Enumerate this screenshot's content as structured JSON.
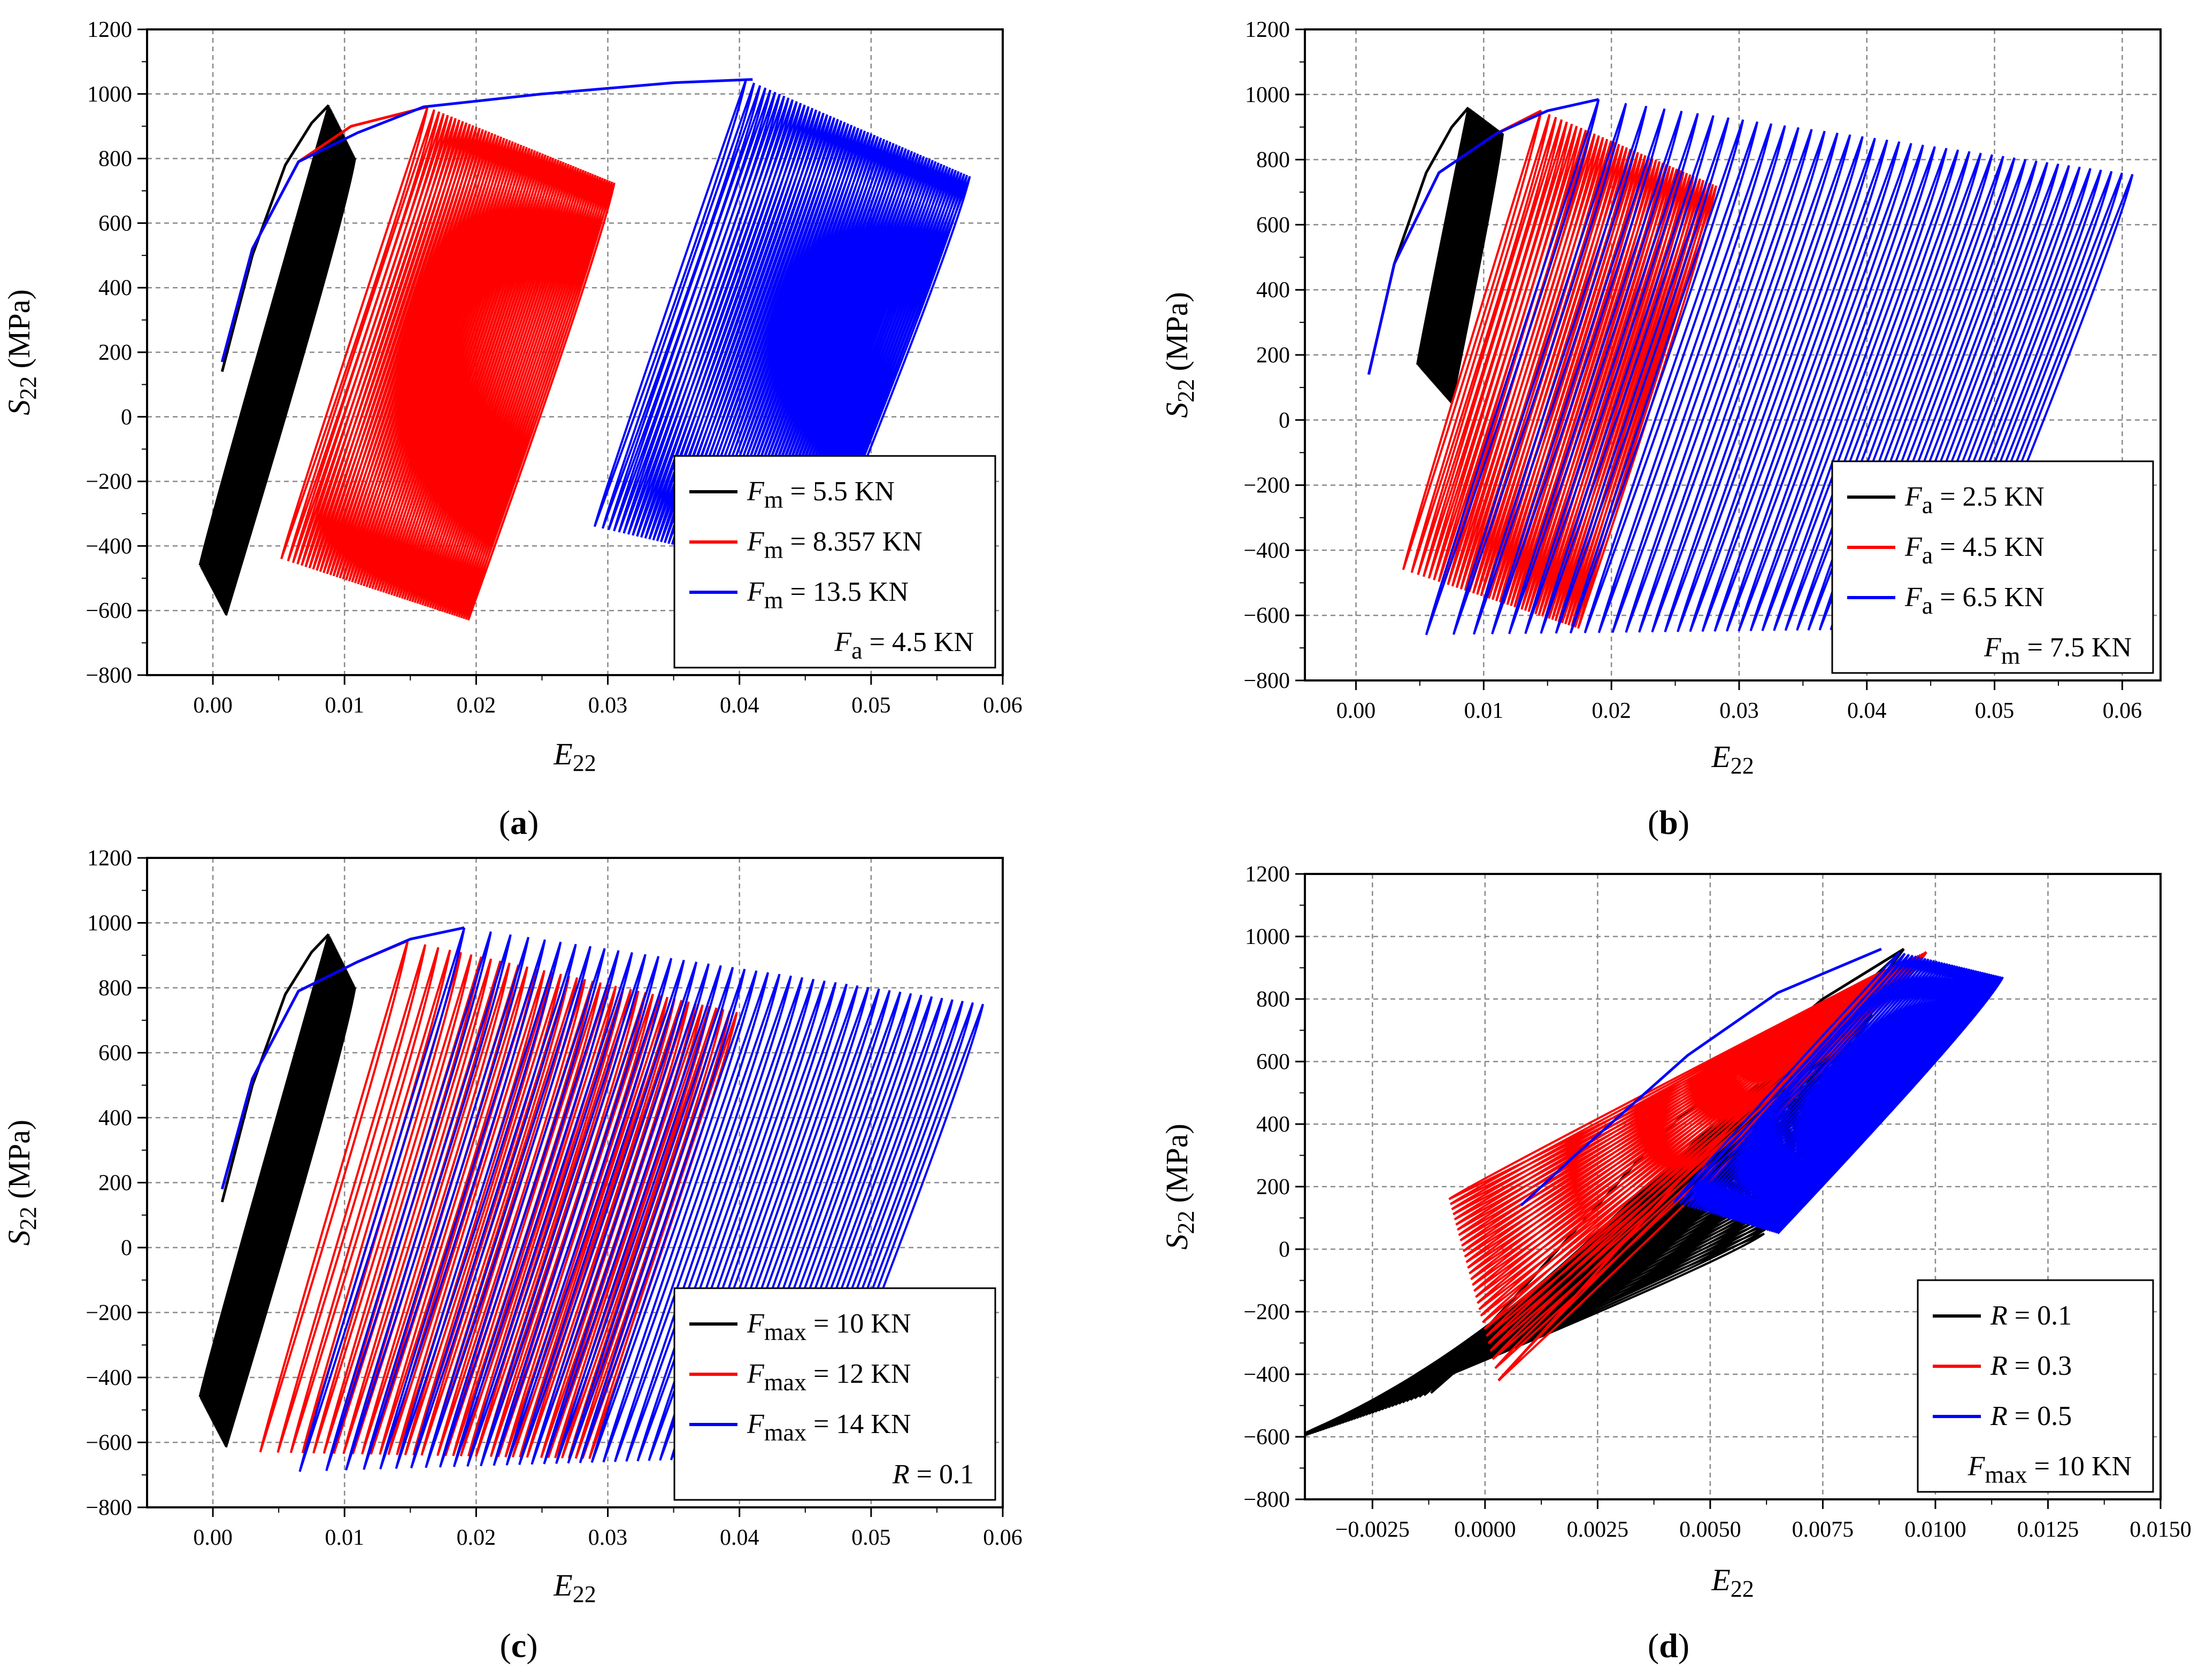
{
  "figure": {
    "panels_order": [
      "a",
      "b",
      "c",
      "d"
    ]
  },
  "chart_data": [
    {
      "panel": "a",
      "type": "line",
      "caption": "(a)",
      "caption_letter": "a",
      "xlabel": "E22",
      "xlabel_main": "E",
      "xlabel_sub": "22",
      "ylabel": "S22 (MPa)",
      "ylabel_main": "S",
      "ylabel_sub": "22",
      "ylabel_unit": " (MPa)",
      "xlim": [
        -0.005,
        0.06
      ],
      "ylim": [
        -800,
        1200
      ],
      "xticks": [
        0.0,
        0.01,
        0.02,
        0.03,
        0.04,
        0.05,
        0.06
      ],
      "xtick_labels": [
        "0.00",
        "0.01",
        "0.02",
        "0.03",
        "0.04",
        "0.05",
        "0.06"
      ],
      "yticks": [
        -800,
        -600,
        -400,
        -200,
        0,
        200,
        400,
        600,
        800,
        1000,
        1200
      ],
      "ytick_labels": [
        "−800",
        "−600",
        "−400",
        "−200",
        "0",
        "200",
        "400",
        "600",
        "800",
        "1000",
        "1200"
      ],
      "grid": true,
      "legend_position": "bottom-right",
      "legend": [
        {
          "main": "F",
          "sub": "m",
          "rest": " = 5.5 KN",
          "color": "#000000"
        },
        {
          "main": "F",
          "sub": "m",
          "rest": " = 8.357 KN",
          "color": "#ff0000"
        },
        {
          "main": "F",
          "sub": "m",
          "rest": " = 13.5 KN",
          "color": "#0000ff"
        }
      ],
      "legend_note": {
        "main": "F",
        "sub": "a",
        "rest": " = 4.5 KN"
      },
      "series": [
        {
          "name": "Fm = 5.5 KN",
          "color": "#000000",
          "envelope": [
            [
              0.0007,
              140
            ],
            [
              0.003,
              500
            ],
            [
              0.0055,
              780
            ],
            [
              0.0075,
              910
            ],
            [
              0.0088,
              965
            ]
          ],
          "cycles": 60,
          "x_start": 0.0088,
          "x_end": 0.0108,
          "peak_start": 965,
          "peak_end": 800,
          "min_start": -460,
          "min_end": -615,
          "width": 0.0098
        },
        {
          "name": "Fm = 8.357 KN",
          "color": "#ff0000",
          "envelope": [
            [
              0.0007,
              170
            ],
            [
              0.003,
              520
            ],
            [
              0.0065,
              790
            ],
            [
              0.0105,
              900
            ],
            [
              0.0163,
              960
            ]
          ],
          "cycles": 65,
          "x_start": 0.0163,
          "x_end": 0.0305,
          "peak_start": 960,
          "peak_end": 725,
          "min_start": -440,
          "min_end": -630,
          "width": 0.0111
        },
        {
          "name": "Fm = 13.5 KN",
          "color": "#0000ff",
          "envelope": [
            [
              0.0007,
              170
            ],
            [
              0.003,
              520
            ],
            [
              0.0065,
              790
            ],
            [
              0.011,
              880
            ],
            [
              0.016,
              960
            ],
            [
              0.025,
              1000
            ],
            [
              0.035,
              1035
            ],
            [
              0.041,
              1045
            ]
          ],
          "cycles": 65,
          "x_start": 0.0405,
          "x_end": 0.0575,
          "peak_start": 1045,
          "peak_end": 745,
          "min_start": -340,
          "min_end": -500,
          "width": 0.0115
        }
      ]
    },
    {
      "panel": "b",
      "type": "line",
      "caption": "(b)",
      "caption_letter": "b",
      "xlabel": "E22",
      "xlabel_main": "E",
      "xlabel_sub": "22",
      "ylabel": "S22 (MPa)",
      "ylabel_main": "S",
      "ylabel_sub": "22",
      "ylabel_unit": " (MPa)",
      "xlim": [
        -0.004,
        0.063
      ],
      "ylim": [
        -800,
        1200
      ],
      "xticks": [
        0.0,
        0.01,
        0.02,
        0.03,
        0.04,
        0.05,
        0.06
      ],
      "xtick_labels": [
        "0.00",
        "0.01",
        "0.02",
        "0.03",
        "0.04",
        "0.05",
        "0.06"
      ],
      "yticks": [
        -800,
        -600,
        -400,
        -200,
        0,
        200,
        400,
        600,
        800,
        1000,
        1200
      ],
      "ytick_labels": [
        "−800",
        "−600",
        "−400",
        "−200",
        "0",
        "200",
        "400",
        "600",
        "800",
        "1000",
        "1200"
      ],
      "grid": true,
      "legend_position": "bottom-right",
      "legend": [
        {
          "main": "F",
          "sub": "a",
          "rest": " = 2.5 KN",
          "color": "#000000"
        },
        {
          "main": "F",
          "sub": "a",
          "rest": " = 4.5 KN",
          "color": "#ff0000"
        },
        {
          "main": "F",
          "sub": "a",
          "rest": " = 6.5 KN",
          "color": "#0000ff"
        }
      ],
      "legend_note": {
        "main": "F",
        "sub": "m",
        "rest": " = 7.5 KN"
      },
      "series": [
        {
          "name": "Fa = 2.5 KN",
          "color": "#000000",
          "envelope": [
            [
              0.001,
              140
            ],
            [
              0.003,
              480
            ],
            [
              0.0055,
              760
            ],
            [
              0.0075,
              900
            ],
            [
              0.0088,
              960
            ]
          ],
          "cycles": 60,
          "x_start": 0.0088,
          "x_end": 0.0115,
          "peak_start": 960,
          "peak_end": 880,
          "min_start": 170,
          "min_end": 50,
          "width": 0.004
        },
        {
          "name": "Fa = 4.5 KN",
          "color": "#ff0000",
          "envelope": [
            [
              0.001,
              140
            ],
            [
              0.003,
              480
            ],
            [
              0.0065,
              760
            ],
            [
              0.011,
              880
            ],
            [
              0.0145,
              950
            ]
          ],
          "cycles": 45,
          "x_start": 0.0145,
          "x_end": 0.0282,
          "peak_start": 950,
          "peak_end": 720,
          "min_start": -460,
          "min_end": -640,
          "width": 0.0108
        },
        {
          "name": "Fa = 6.5 KN",
          "color": "#0000ff",
          "envelope": [
            [
              0.001,
              140
            ],
            [
              0.003,
              480
            ],
            [
              0.0065,
              760
            ],
            [
              0.011,
              880
            ],
            [
              0.015,
              950
            ],
            [
              0.019,
              985
            ]
          ],
          "cycles": 42,
          "x_start": 0.019,
          "x_end": 0.0608,
          "peak_start": 985,
          "peak_end": 755,
          "min_start": -660,
          "min_end": -640,
          "width": 0.0135
        }
      ]
    },
    {
      "panel": "c",
      "type": "line",
      "caption": "(c)",
      "caption_letter": "c",
      "xlabel": "E22",
      "xlabel_main": "E",
      "xlabel_sub": "22",
      "ylabel": "S22 (MPa)",
      "ylabel_main": "S",
      "ylabel_sub": "22",
      "ylabel_unit": " (MPa)",
      "xlim": [
        -0.005,
        0.06
      ],
      "ylim": [
        -800,
        1200
      ],
      "xticks": [
        0.0,
        0.01,
        0.02,
        0.03,
        0.04,
        0.05,
        0.06
      ],
      "xtick_labels": [
        "0.00",
        "0.01",
        "0.02",
        "0.03",
        "0.04",
        "0.05",
        "0.06"
      ],
      "yticks": [
        -800,
        -600,
        -400,
        -200,
        0,
        200,
        400,
        600,
        800,
        1000,
        1200
      ],
      "ytick_labels": [
        "−800",
        "−600",
        "−400",
        "−200",
        "0",
        "200",
        "400",
        "600",
        "800",
        "1000",
        "1200"
      ],
      "grid": true,
      "legend_position": "bottom-right",
      "legend": [
        {
          "main": "F",
          "sub": "max",
          "rest": " = 10 KN",
          "color": "#000000"
        },
        {
          "main": "F",
          "sub": "max",
          "rest": " = 12 KN",
          "color": "#ff0000"
        },
        {
          "main": "F",
          "sub": "max",
          "rest": " = 14 KN",
          "color": "#0000ff"
        }
      ],
      "legend_note": {
        "main": "R",
        "sub": "",
        "rest": " = 0.1"
      },
      "series": [
        {
          "name": "Fmax = 10 KN",
          "color": "#000000",
          "envelope": [
            [
              0.0007,
              140
            ],
            [
              0.003,
              500
            ],
            [
              0.0055,
              780
            ],
            [
              0.0075,
              910
            ],
            [
              0.0088,
              965
            ]
          ],
          "cycles": 60,
          "x_start": 0.0088,
          "x_end": 0.0108,
          "peak_start": 965,
          "peak_end": 800,
          "min_start": -460,
          "min_end": -615,
          "width": 0.0098
        },
        {
          "name": "Fmax = 12 KN",
          "color": "#ff0000",
          "envelope": [
            [
              0.0007,
              180
            ],
            [
              0.003,
              520
            ],
            [
              0.0065,
              790
            ],
            [
              0.011,
              880
            ],
            [
              0.0148,
              945
            ]
          ],
          "cycles": 40,
          "x_start": 0.0148,
          "x_end": 0.0398,
          "peak_start": 945,
          "peak_end": 725,
          "min_start": -630,
          "min_end": -650,
          "width": 0.0112
        },
        {
          "name": "Fmax = 14 KN",
          "color": "#0000ff",
          "envelope": [
            [
              0.0007,
              180
            ],
            [
              0.003,
              520
            ],
            [
              0.0065,
              790
            ],
            [
              0.011,
              880
            ],
            [
              0.015,
              950
            ],
            [
              0.0191,
              985
            ]
          ],
          "cycles": 42,
          "x_start": 0.0191,
          "x_end": 0.0585,
          "peak_start": 985,
          "peak_end": 750,
          "min_start": -690,
          "min_end": -640,
          "width": 0.0125
        }
      ]
    },
    {
      "panel": "d",
      "type": "line",
      "caption": "(d)",
      "caption_letter": "d",
      "xlabel": "E22",
      "xlabel_main": "E",
      "xlabel_sub": "22",
      "ylabel": "S22 (MPa)",
      "ylabel_main": "S",
      "ylabel_sub": "22",
      "ylabel_unit": " (MPa)",
      "xlim": [
        -0.004,
        0.015
      ],
      "ylim": [
        -800,
        1200
      ],
      "xticks": [
        -0.0025,
        0.0,
        0.0025,
        0.005,
        0.0075,
        0.01,
        0.0125,
        0.015
      ],
      "xtick_labels": [
        "−0.0025",
        "0.0000",
        "0.0025",
        "0.0050",
        "0.0075",
        "0.0100",
        "0.0125",
        "0.0150"
      ],
      "yticks": [
        -800,
        -600,
        -400,
        -200,
        0,
        200,
        400,
        600,
        800,
        1000,
        1200
      ],
      "ytick_labels": [
        "−800",
        "−600",
        "−400",
        "−200",
        "0",
        "200",
        "400",
        "600",
        "800",
        "1000",
        "1200"
      ],
      "grid": true,
      "legend_position": "bottom-right",
      "legend": [
        {
          "main": "R",
          "sub": "",
          "rest": " = 0.1",
          "color": "#000000"
        },
        {
          "main": "R",
          "sub": "",
          "rest": " = 0.3",
          "color": "#ff0000"
        },
        {
          "main": "R",
          "sub": "",
          "rest": " = 0.5",
          "color": "#0000ff"
        }
      ],
      "legend_note": {
        "main": "F",
        "sub": "max",
        "rest": " = 10 KN"
      },
      "series": [
        {
          "name": "R = 0.1",
          "color": "#000000",
          "envelope": [
            [
              -0.0013,
              -460
            ],
            [
              0.001,
              -100
            ],
            [
              0.004,
              380
            ],
            [
              0.0075,
              800
            ],
            [
              0.0093,
              960
            ]
          ],
          "cycles": 45,
          "x_start": 0.0093,
          "x_end": 0.0062,
          "peak_start": 960,
          "peak_end": 50,
          "min_start": -460,
          "min_end": -610,
          "width": 0.0105
        },
        {
          "name": "R = 0.3",
          "color": "#ff0000",
          "envelope": [
            [
              0.0003,
              -420
            ],
            [
              0.002,
              -150
            ],
            [
              0.0045,
              250
            ],
            [
              0.0075,
              700
            ],
            [
              0.0098,
              950
            ]
          ],
          "cycles": 30,
          "x_start": 0.0098,
          "x_end": 0.0087,
          "peak_start": 950,
          "peak_end": 880,
          "min_start": -420,
          "min_end": 160,
          "width": 0.0095
        },
        {
          "name": "R = 0.5",
          "color": "#0000ff",
          "envelope": [
            [
              0.0008,
              140
            ],
            [
              0.002,
              300
            ],
            [
              0.0045,
              620
            ],
            [
              0.0065,
              820
            ],
            [
              0.0088,
              960
            ]
          ],
          "cycles": 40,
          "x_start": 0.0092,
          "x_end": 0.0115,
          "peak_start": 950,
          "peak_end": 870,
          "min_start": 150,
          "min_end": 50,
          "width": 0.005
        }
      ]
    }
  ]
}
